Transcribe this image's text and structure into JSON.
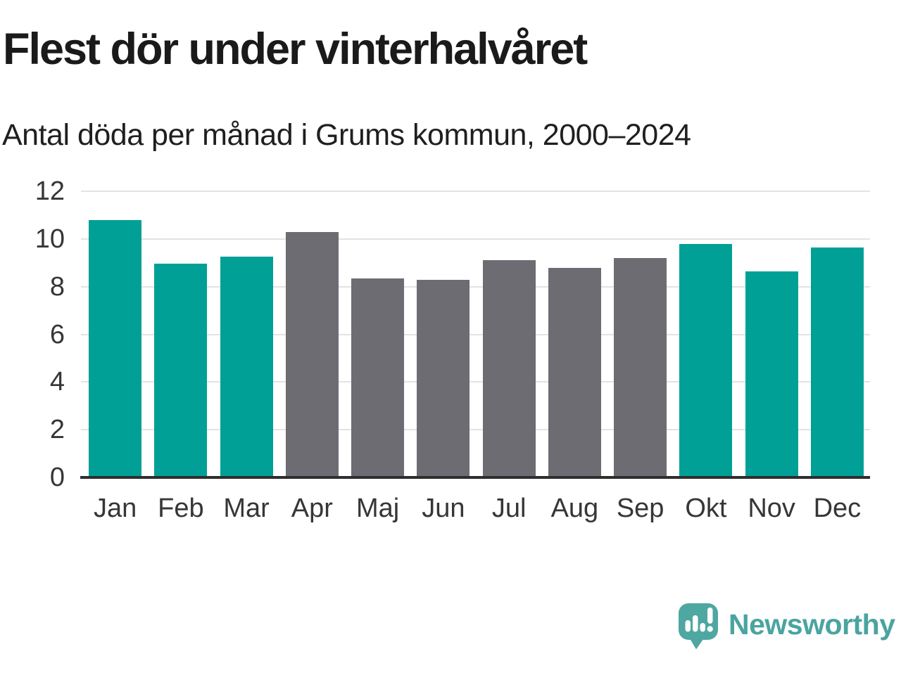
{
  "header": {
    "title": "Flest dör under vinterhalvåret",
    "subtitle": "Antal döda per månad i Grums kommun, 2000–2024"
  },
  "chart_data": {
    "type": "bar",
    "categories": [
      "Jan",
      "Feb",
      "Mar",
      "Apr",
      "Maj",
      "Jun",
      "Jul",
      "Aug",
      "Sep",
      "Okt",
      "Nov",
      "Dec"
    ],
    "values": [
      10.8,
      8.95,
      9.25,
      10.3,
      8.35,
      8.3,
      9.1,
      8.8,
      9.2,
      9.8,
      8.65,
      9.65
    ],
    "bar_groups": [
      "winter",
      "winter",
      "winter",
      "summer",
      "summer",
      "summer",
      "summer",
      "summer",
      "summer",
      "winter",
      "winter",
      "winter"
    ],
    "colors": {
      "winter": "#00a096",
      "summer": "#6c6c72"
    },
    "title": "Flest dör under vinterhalvåret",
    "subtitle": "Antal döda per månad i Grums kommun, 2000–2024",
    "xlabel": "",
    "ylabel": "",
    "ylim": [
      0,
      12
    ],
    "yticks": [
      0,
      2,
      4,
      6,
      8,
      10,
      12
    ],
    "grid": true,
    "gridline_color": "#e3e3e3",
    "axis_line_color": "#2e2e2e",
    "tick_label_color": "#363636",
    "legend": "none"
  },
  "logo": {
    "text": "Newsworthy",
    "icon": "newsworthy-speech-bubble-chart-icon",
    "icon_color": "#4ea7a1",
    "text_color": "#4aa4a0"
  }
}
